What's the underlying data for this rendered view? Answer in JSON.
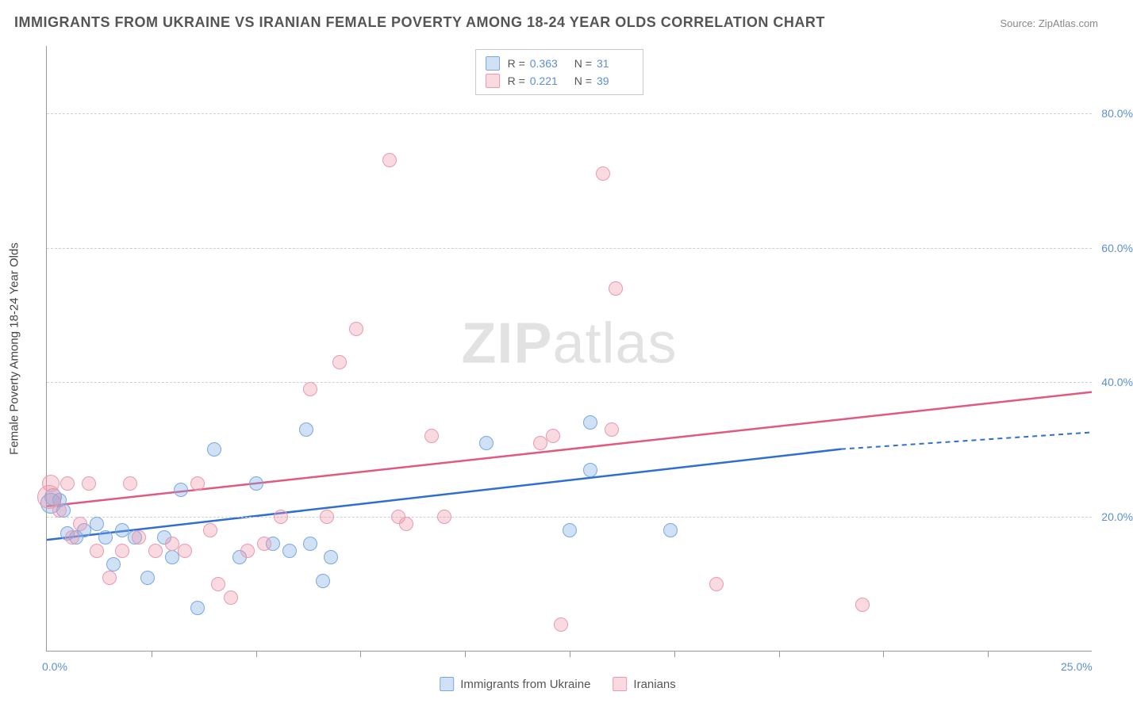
{
  "title": "IMMIGRANTS FROM UKRAINE VS IRANIAN FEMALE POVERTY AMONG 18-24 YEAR OLDS CORRELATION CHART",
  "source": "Source: ZipAtlas.com",
  "watermark_bold": "ZIP",
  "watermark_light": "atlas",
  "y_axis_title": "Female Poverty Among 18-24 Year Olds",
  "x_axis": {
    "min": 0,
    "max": 25,
    "ticks_minor": [
      2.5,
      5,
      7.5,
      10,
      12.5,
      15,
      17.5,
      20,
      22.5
    ],
    "labels": [
      {
        "v": 0,
        "t": "0.0%"
      },
      {
        "v": 25,
        "t": "25.0%"
      }
    ]
  },
  "y_axis": {
    "min": 0,
    "max": 90,
    "gridlines": [
      20,
      40,
      60,
      80
    ],
    "labels": [
      {
        "v": 20,
        "t": "20.0%"
      },
      {
        "v": 40,
        "t": "40.0%"
      },
      {
        "v": 60,
        "t": "60.0%"
      },
      {
        "v": 80,
        "t": "80.0%"
      }
    ]
  },
  "series": [
    {
      "key": "ukraine",
      "label": "Immigrants from Ukraine",
      "point_fill": "rgba(120,170,230,0.35)",
      "point_stroke": "#7aa8e0",
      "line_color": "#2f6fd0",
      "R": "0.363",
      "N": "31",
      "regression": {
        "x1": 0,
        "y1": 16.5,
        "x2": 19,
        "y2": 30,
        "dash_from_x": 19,
        "dash_to_x": 25,
        "dash_to_y": 32.5
      },
      "sizes_default": 18,
      "points": [
        {
          "x": 0.1,
          "y": 22,
          "s": 26
        },
        {
          "x": 0.15,
          "y": 23,
          "s": 22
        },
        {
          "x": 0.3,
          "y": 22.5
        },
        {
          "x": 0.4,
          "y": 21
        },
        {
          "x": 0.5,
          "y": 17.5
        },
        {
          "x": 0.7,
          "y": 17
        },
        {
          "x": 0.9,
          "y": 18
        },
        {
          "x": 1.2,
          "y": 19
        },
        {
          "x": 1.4,
          "y": 17
        },
        {
          "x": 1.6,
          "y": 13
        },
        {
          "x": 1.8,
          "y": 18
        },
        {
          "x": 2.1,
          "y": 17
        },
        {
          "x": 2.4,
          "y": 11
        },
        {
          "x": 2.8,
          "y": 17
        },
        {
          "x": 3.0,
          "y": 14
        },
        {
          "x": 3.2,
          "y": 24
        },
        {
          "x": 3.6,
          "y": 6.5
        },
        {
          "x": 4.0,
          "y": 30
        },
        {
          "x": 4.6,
          "y": 14
        },
        {
          "x": 5.0,
          "y": 25
        },
        {
          "x": 5.4,
          "y": 16
        },
        {
          "x": 5.8,
          "y": 15
        },
        {
          "x": 6.2,
          "y": 33
        },
        {
          "x": 6.3,
          "y": 16
        },
        {
          "x": 6.6,
          "y": 10.5
        },
        {
          "x": 6.8,
          "y": 14
        },
        {
          "x": 10.5,
          "y": 31
        },
        {
          "x": 13.0,
          "y": 34
        },
        {
          "x": 13.0,
          "y": 27
        },
        {
          "x": 14.9,
          "y": 18
        },
        {
          "x": 12.5,
          "y": 18
        }
      ]
    },
    {
      "key": "iranians",
      "label": "Iranians",
      "point_fill": "rgba(240,150,170,0.35)",
      "point_stroke": "#e89ab0",
      "line_color": "#e05a80",
      "R": "0.221",
      "N": "39",
      "regression": {
        "x1": 0,
        "y1": 21.5,
        "x2": 25,
        "y2": 38.5
      },
      "sizes_default": 18,
      "points": [
        {
          "x": 0.05,
          "y": 23,
          "s": 30
        },
        {
          "x": 0.1,
          "y": 25,
          "s": 22
        },
        {
          "x": 0.3,
          "y": 21
        },
        {
          "x": 0.5,
          "y": 25
        },
        {
          "x": 0.8,
          "y": 19
        },
        {
          "x": 1.0,
          "y": 25
        },
        {
          "x": 1.2,
          "y": 15
        },
        {
          "x": 1.5,
          "y": 11
        },
        {
          "x": 1.8,
          "y": 15
        },
        {
          "x": 2.2,
          "y": 17
        },
        {
          "x": 2.6,
          "y": 15
        },
        {
          "x": 3.0,
          "y": 16
        },
        {
          "x": 3.3,
          "y": 15
        },
        {
          "x": 3.6,
          "y": 25
        },
        {
          "x": 3.9,
          "y": 18
        },
        {
          "x": 4.1,
          "y": 10
        },
        {
          "x": 4.4,
          "y": 8
        },
        {
          "x": 4.8,
          "y": 15
        },
        {
          "x": 5.2,
          "y": 16
        },
        {
          "x": 5.6,
          "y": 20
        },
        {
          "x": 6.3,
          "y": 39
        },
        {
          "x": 6.7,
          "y": 20
        },
        {
          "x": 7.0,
          "y": 43
        },
        {
          "x": 7.4,
          "y": 48
        },
        {
          "x": 8.2,
          "y": 73
        },
        {
          "x": 8.4,
          "y": 20
        },
        {
          "x": 8.6,
          "y": 19
        },
        {
          "x": 9.2,
          "y": 32
        },
        {
          "x": 11.8,
          "y": 31
        },
        {
          "x": 12.1,
          "y": 32
        },
        {
          "x": 12.3,
          "y": 4
        },
        {
          "x": 13.3,
          "y": 71
        },
        {
          "x": 13.5,
          "y": 33
        },
        {
          "x": 13.6,
          "y": 54
        },
        {
          "x": 16.0,
          "y": 10
        },
        {
          "x": 19.5,
          "y": 7
        },
        {
          "x": 9.5,
          "y": 20
        },
        {
          "x": 2.0,
          "y": 25
        },
        {
          "x": 0.6,
          "y": 17
        }
      ]
    }
  ],
  "stat_legend": {
    "R_label": "R =",
    "N_label": "N ="
  },
  "bottom_legend": {
    "items": [
      "ukraine",
      "iranians"
    ]
  }
}
